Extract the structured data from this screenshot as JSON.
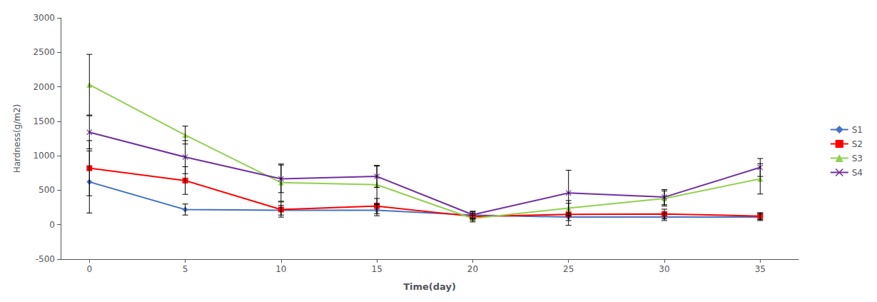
{
  "chart_data": {
    "type": "line",
    "xlabel": "Time(day)",
    "ylabel": "Hardness(g/m2)",
    "x": [
      0,
      5,
      10,
      15,
      20,
      25,
      30,
      35
    ],
    "series": [
      {
        "name": "S1",
        "color": "#4472C4",
        "marker": "diamond",
        "values": [
          620,
          220,
          210,
          210,
          140,
          110,
          110,
          110
        ],
        "yerr": [
          450,
          80,
          70,
          80,
          50,
          50,
          50,
          50
        ]
      },
      {
        "name": "S2",
        "color": "#FF0000",
        "marker": "square",
        "values": [
          820,
          640,
          220,
          270,
          120,
          150,
          155,
          125
        ],
        "yerr": [
          400,
          200,
          110,
          110,
          50,
          160,
          70,
          50
        ]
      },
      {
        "name": "S3",
        "color": "#92D050",
        "marker": "triangle",
        "values": [
          2030,
          1300,
          610,
          580,
          90,
          240,
          380,
          665
        ],
        "yerr": [
          440,
          130,
          270,
          270,
          50,
          110,
          110,
          220
        ]
      },
      {
        "name": "S4",
        "color": "#7030A0",
        "marker": "x",
        "values": [
          1340,
          980,
          665,
          700,
          145,
          460,
          400,
          830
        ],
        "yerr": [
          240,
          240,
          200,
          160,
          50,
          330,
          110,
          130
        ]
      }
    ],
    "xlim": [
      -1.5,
      37
    ],
    "xticks": [
      0,
      5,
      10,
      15,
      20,
      25,
      30,
      35
    ],
    "ylim": [
      -500,
      3000
    ],
    "yticks": [
      -500,
      0,
      500,
      1000,
      1500,
      2000,
      2500,
      3000
    ],
    "grid": false,
    "legend": "right"
  }
}
